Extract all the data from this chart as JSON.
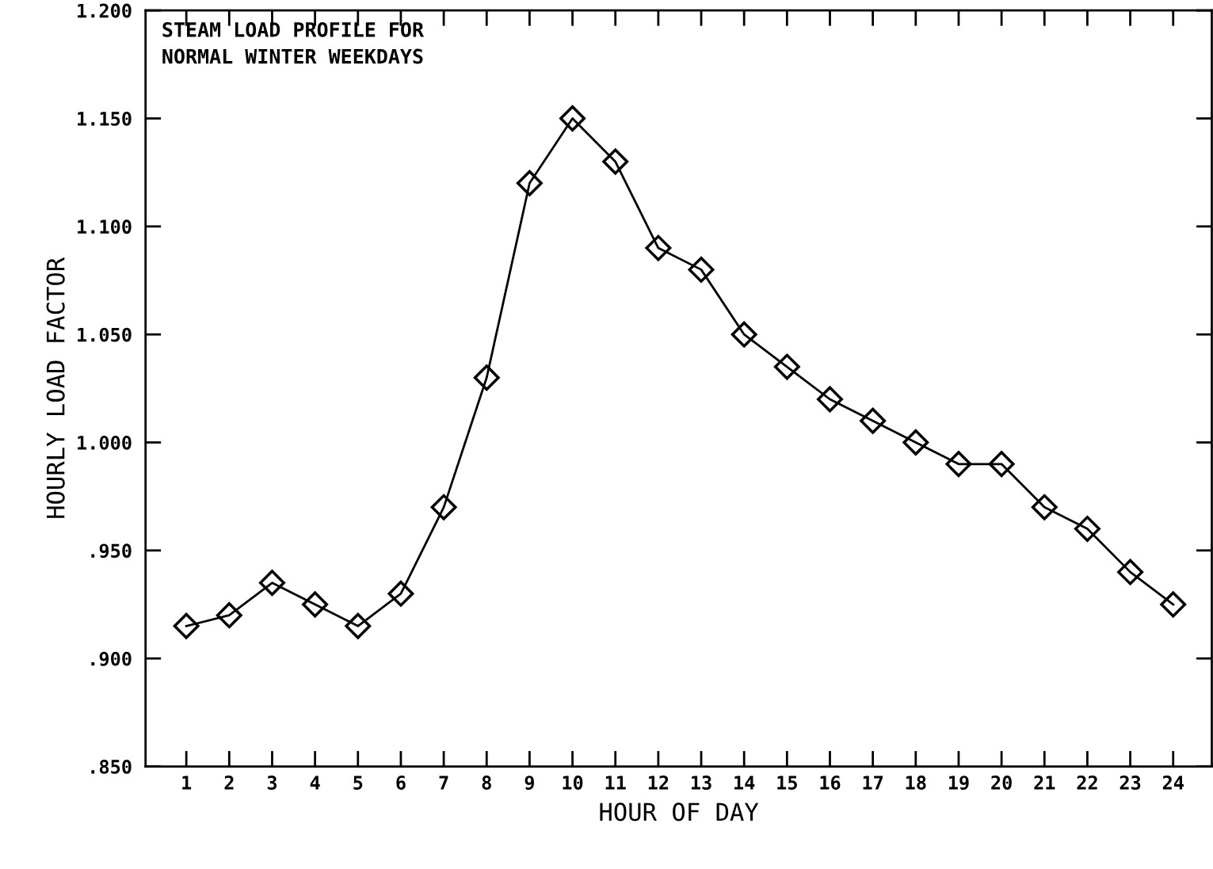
{
  "chart_data": {
    "type": "line",
    "title": "STEAM LOAD PROFILE FOR\nNORMAL WINTER WEEKDAYS",
    "xlabel": "HOUR OF DAY",
    "ylabel": "HOURLY LOAD FACTOR",
    "x": [
      1,
      2,
      3,
      4,
      5,
      6,
      7,
      8,
      9,
      10,
      11,
      12,
      13,
      14,
      15,
      16,
      17,
      18,
      19,
      20,
      21,
      22,
      23,
      24
    ],
    "series": [
      {
        "color": "#000000",
        "values": [
          0.915,
          0.92,
          0.935,
          0.925,
          0.915,
          0.93,
          0.97,
          1.03,
          1.12,
          1.15,
          1.13,
          1.09,
          1.08,
          1.05,
          1.035,
          1.02,
          1.01,
          1.0,
          0.99,
          0.99,
          0.97,
          0.96,
          0.94,
          0.925
        ]
      }
    ],
    "xlim": [
      0.05,
      24.9
    ],
    "xticks": [
      1,
      2,
      3,
      4,
      5,
      6,
      7,
      8,
      9,
      10,
      11,
      12,
      13,
      14,
      15,
      16,
      17,
      18,
      19,
      20,
      21,
      22,
      23,
      24
    ],
    "ylim": [
      0.85,
      1.2
    ],
    "yticks": [
      {
        "value": 0.85,
        "label": ".850"
      },
      {
        "value": 0.9,
        "label": ".900"
      },
      {
        "value": 0.95,
        "label": ".950"
      },
      {
        "value": 1.0,
        "label": "1.000"
      },
      {
        "value": 1.05,
        "label": "1.050"
      },
      {
        "value": 1.1,
        "label": "1.100"
      },
      {
        "value": 1.15,
        "label": "1.150"
      },
      {
        "value": 1.2,
        "label": "1.200"
      }
    ],
    "marker": "diamond",
    "line_style": "solid",
    "grid": false,
    "legend": false
  }
}
